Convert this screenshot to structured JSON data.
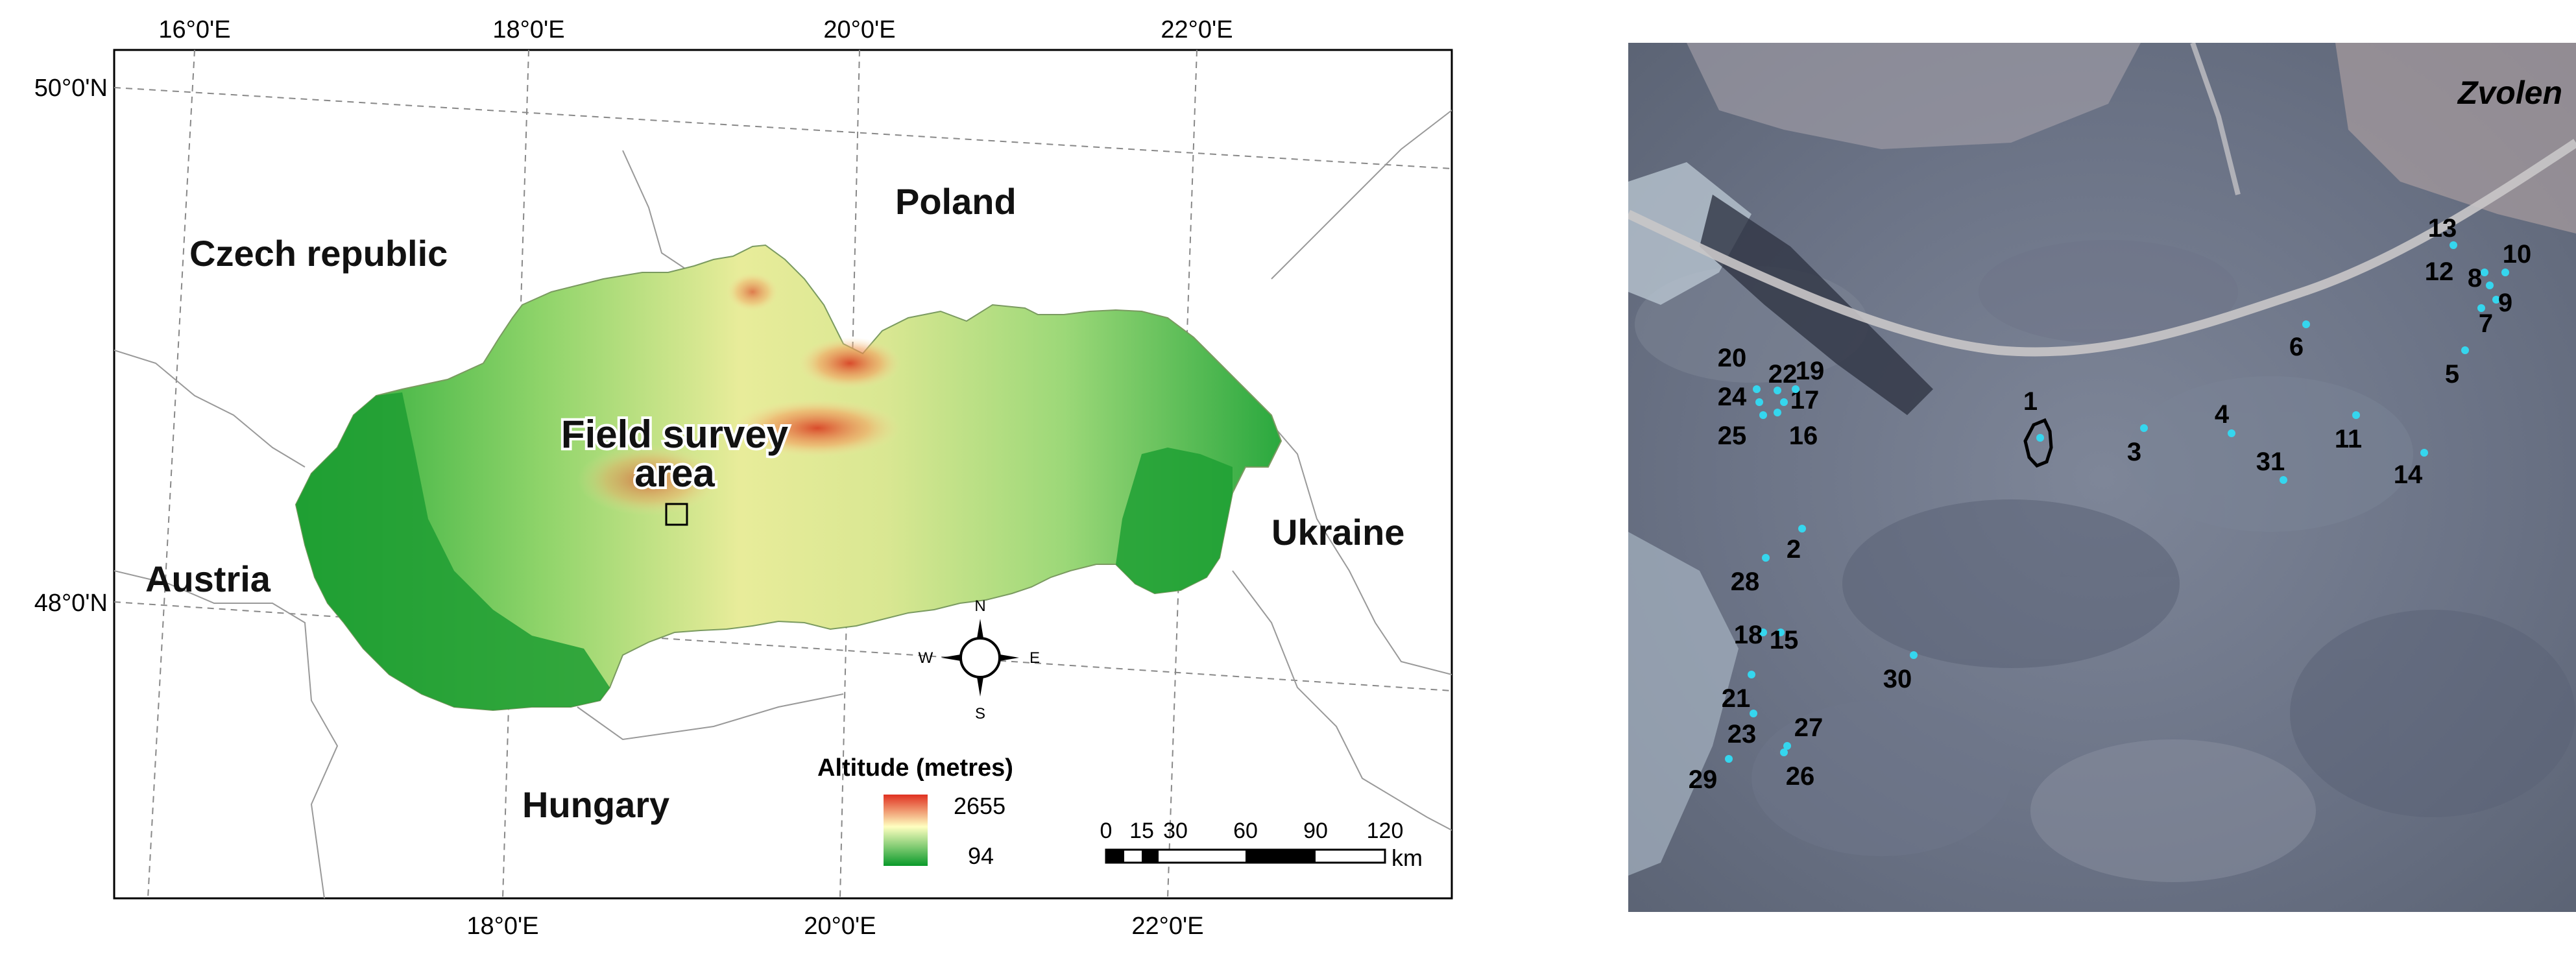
{
  "left_map": {
    "top_ticks": [
      "16°0'E",
      "18°0'E",
      "20°0'E",
      "22°0'E"
    ],
    "bottom_ticks": [
      "18°0'E",
      "20°0'E",
      "22°0'E"
    ],
    "left_ticks": [
      "50°0'N",
      "48°0'N"
    ],
    "countries": {
      "czech": "Czech republic",
      "poland": "Poland",
      "austria": "Austria",
      "ukraine": "Ukraine",
      "hungary": "Hungary"
    },
    "survey_label_line1": "Field survey",
    "survey_label_line2": "area",
    "compass": {
      "n": "N",
      "s": "S",
      "e": "E",
      "w": "W"
    },
    "legend": {
      "title": "Altitude (metres)",
      "max": "2655",
      "min": "94"
    },
    "scalebar": {
      "ticks": [
        "0",
        "15",
        "30",
        "60",
        "90",
        "120"
      ],
      "unit": "km"
    },
    "colors": {
      "low": "#0a9a2a",
      "mid": "#ffffc0",
      "high": "#e03020"
    }
  },
  "right_map": {
    "town": "Zvolen",
    "point_color": "#35d6ee",
    "points": [
      {
        "label": "1"
      },
      {
        "label": "2"
      },
      {
        "label": "3"
      },
      {
        "label": "4"
      },
      {
        "label": "5"
      },
      {
        "label": "6"
      },
      {
        "label": "7"
      },
      {
        "label": "8"
      },
      {
        "label": "9"
      },
      {
        "label": "10"
      },
      {
        "label": "11"
      },
      {
        "label": "12"
      },
      {
        "label": "13"
      },
      {
        "label": "14"
      },
      {
        "label": "15"
      },
      {
        "label": "16"
      },
      {
        "label": "17"
      },
      {
        "label": "18"
      },
      {
        "label": "19"
      },
      {
        "label": "20"
      },
      {
        "label": "21"
      },
      {
        "label": "22"
      },
      {
        "label": "23"
      },
      {
        "label": "24"
      },
      {
        "label": "25"
      },
      {
        "label": "26"
      },
      {
        "label": "27"
      },
      {
        "label": "28"
      },
      {
        "label": "29"
      },
      {
        "label": "30"
      },
      {
        "label": "31"
      }
    ]
  }
}
